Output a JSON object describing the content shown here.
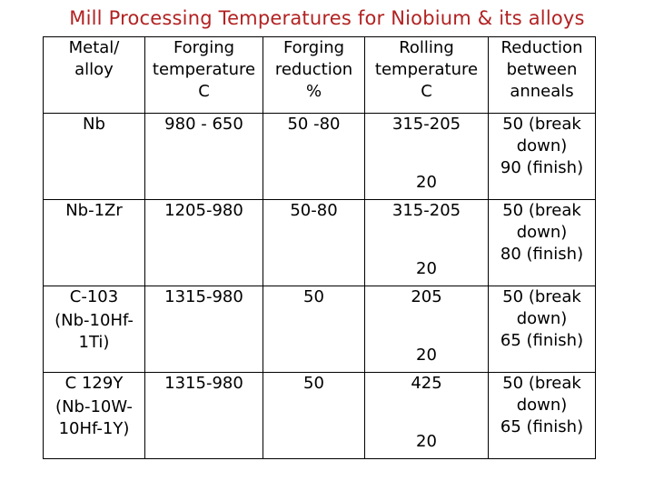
{
  "title": "Mill Processing Temperatures for Niobium & its alloys",
  "headers": {
    "alloy": [
      "Metal/",
      "alloy"
    ],
    "forging_temp": [
      "Forging",
      "temperature",
      "C"
    ],
    "forging_reduction": [
      "Forging",
      "reduction",
      "%"
    ],
    "rolling_temp": [
      "Rolling",
      "temperature",
      "C"
    ],
    "reduction_anneals": [
      "Reduction",
      "between",
      "anneals"
    ]
  },
  "rows": [
    {
      "alloy": "Nb",
      "alloy_sub": "",
      "forging_temp": "980 - 650",
      "forging_reduction": "50 -80",
      "rolling_temp_high": "315-205",
      "rolling_temp_low": "20",
      "reduction": [
        "50 (break",
        "down)",
        "90 (finish)"
      ]
    },
    {
      "alloy": "Nb-1Zr",
      "alloy_sub": "",
      "forging_temp": "1205-980",
      "forging_reduction": "50-80",
      "rolling_temp_high": "315-205",
      "rolling_temp_low": "20",
      "reduction": [
        "50 (break",
        "down)",
        "80 (finish)"
      ]
    },
    {
      "alloy": "C-103",
      "alloy_sub": "(Nb-10Hf-1Ti)",
      "forging_temp": "1315-980",
      "forging_reduction": "50",
      "rolling_temp_high": "205",
      "rolling_temp_low": "20",
      "reduction": [
        "50 (break",
        "down)",
        "65 (finish)"
      ]
    },
    {
      "alloy": "C 129Y",
      "alloy_sub": "(Nb-10W-10Hf-1Y)",
      "forging_temp": "1315-980",
      "forging_reduction": "50",
      "rolling_temp_high": "425",
      "rolling_temp_low": "20",
      "reduction": [
        "50 (break",
        "down)",
        "65 (finish)"
      ]
    }
  ]
}
